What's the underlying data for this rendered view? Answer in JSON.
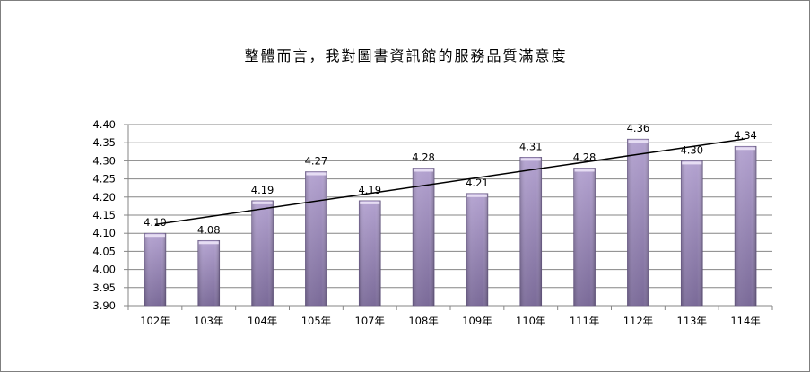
{
  "chart_data": {
    "type": "bar",
    "title": "整體而言，我對圖書資訊館的服務品質滿意度",
    "categories": [
      "102年",
      "103年",
      "104年",
      "105年",
      "107年",
      "108年",
      "109年",
      "110年",
      "111年",
      "112年",
      "113年",
      "114年"
    ],
    "values": [
      4.1,
      4.08,
      4.19,
      4.27,
      4.19,
      4.28,
      4.21,
      4.31,
      4.28,
      4.36,
      4.3,
      4.34
    ],
    "data_labels": [
      "4.10",
      "4.08",
      "4.19",
      "4.27",
      "4.19",
      "4.28",
      "4.21",
      "4.31",
      "4.28",
      "4.36",
      "4.30",
      "4.34"
    ],
    "ylim": [
      3.9,
      4.4
    ],
    "yticks": [
      "3.90",
      "3.95",
      "4.00",
      "4.05",
      "4.10",
      "4.15",
      "4.20",
      "4.25",
      "4.30",
      "4.35",
      "4.40"
    ],
    "xlabel": "",
    "ylabel": "",
    "grid": true,
    "trendline": "linear",
    "legend": "none",
    "colors": {
      "bar_light": "#b3a2d0",
      "bar_dark": "#7a6a98",
      "grid": "#868686",
      "trend": "#000000"
    }
  }
}
